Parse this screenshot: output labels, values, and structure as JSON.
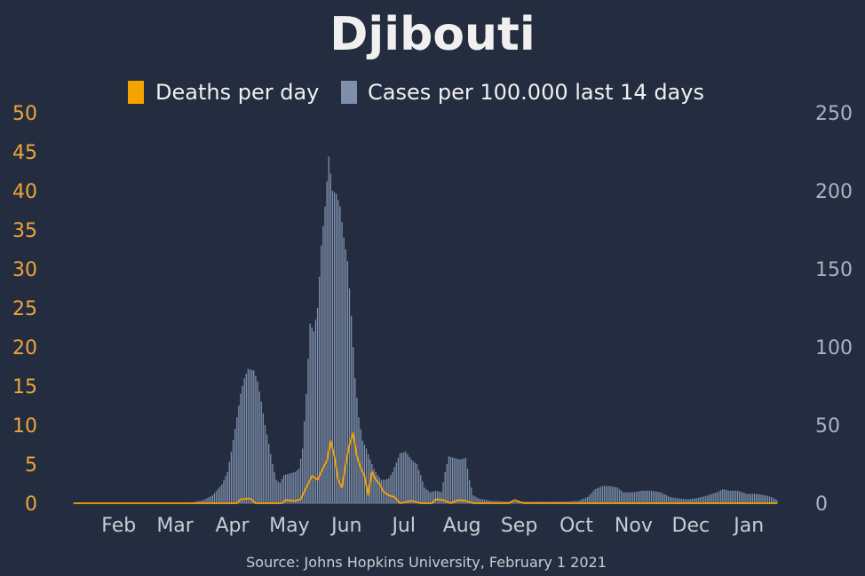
{
  "chart_data": {
    "type": "bar",
    "title": "Djibouti",
    "source": "Source: Johns Hopkins University, February 1 2021",
    "legend": [
      {
        "name": "Deaths per day",
        "color": "#f5a300",
        "marker": "orange-square"
      },
      {
        "name": "Cases per 100.000 last 14 days",
        "color": "#7f8fab",
        "marker": "slate-square"
      }
    ],
    "x_ticks": [
      "Feb",
      "Mar",
      "Apr",
      "May",
      "Jun",
      "Jul",
      "Aug",
      "Sep",
      "Oct",
      "Nov",
      "Dec",
      "Jan"
    ],
    "y_left": {
      "ticks": [
        "0",
        "5",
        "10",
        "15",
        "20",
        "25",
        "30",
        "35",
        "40",
        "45",
        "50"
      ],
      "lim": [
        0,
        50
      ],
      "color": "#f0a43a"
    },
    "y_right": {
      "ticks": [
        "0",
        "50",
        "100",
        "150",
        "200",
        "250"
      ],
      "lim": [
        0,
        250
      ],
      "color": "#a8b4c6"
    },
    "x_range": [
      "2020-01-22",
      "2021-01-31"
    ],
    "cases_series": {
      "name": "Cases per 100.000 last 14 days",
      "color": "#7f8fab",
      "points": [
        [
          "2020-01-22",
          0
        ],
        [
          "2020-03-18",
          0
        ],
        [
          "2020-03-25",
          0.5
        ],
        [
          "2020-03-31",
          2
        ],
        [
          "2020-04-05",
          5
        ],
        [
          "2020-04-10",
          12
        ],
        [
          "2020-04-13",
          20
        ],
        [
          "2020-04-15",
          33
        ],
        [
          "2020-04-18",
          55
        ],
        [
          "2020-04-20",
          70
        ],
        [
          "2020-04-22",
          80
        ],
        [
          "2020-04-24",
          86
        ],
        [
          "2020-04-27",
          85
        ],
        [
          "2020-04-29",
          78
        ],
        [
          "2020-05-01",
          65
        ],
        [
          "2020-05-03",
          50
        ],
        [
          "2020-05-05",
          38
        ],
        [
          "2020-05-07",
          25
        ],
        [
          "2020-05-09",
          15
        ],
        [
          "2020-05-11",
          13
        ],
        [
          "2020-05-13",
          18
        ],
        [
          "2020-05-16",
          19
        ],
        [
          "2020-05-19",
          20
        ],
        [
          "2020-05-21",
          22
        ],
        [
          "2020-05-23",
          35
        ],
        [
          "2020-05-25",
          70
        ],
        [
          "2020-05-27",
          115
        ],
        [
          "2020-05-29",
          110
        ],
        [
          "2020-05-31",
          125
        ],
        [
          "2020-06-02",
          165
        ],
        [
          "2020-06-04",
          190
        ],
        [
          "2020-06-06",
          222
        ],
        [
          "2020-06-08",
          200
        ],
        [
          "2020-06-10",
          198
        ],
        [
          "2020-06-12",
          190
        ],
        [
          "2020-06-14",
          170
        ],
        [
          "2020-06-16",
          155
        ],
        [
          "2020-06-18",
          120
        ],
        [
          "2020-06-20",
          80
        ],
        [
          "2020-06-22",
          55
        ],
        [
          "2020-06-24",
          40
        ],
        [
          "2020-06-26",
          35
        ],
        [
          "2020-06-28",
          28
        ],
        [
          "2020-06-30",
          22
        ],
        [
          "2020-07-02",
          18
        ],
        [
          "2020-07-04",
          15
        ],
        [
          "2020-07-06",
          15
        ],
        [
          "2020-07-08",
          16
        ],
        [
          "2020-07-10",
          20
        ],
        [
          "2020-07-12",
          26
        ],
        [
          "2020-07-14",
          32
        ],
        [
          "2020-07-17",
          33
        ],
        [
          "2020-07-20",
          28
        ],
        [
          "2020-07-23",
          25
        ],
        [
          "2020-07-25",
          18
        ],
        [
          "2020-07-27",
          10
        ],
        [
          "2020-07-30",
          7
        ],
        [
          "2020-08-02",
          8
        ],
        [
          "2020-08-05",
          7
        ],
        [
          "2020-08-07",
          20
        ],
        [
          "2020-08-09",
          30
        ],
        [
          "2020-08-12",
          29
        ],
        [
          "2020-08-15",
          28
        ],
        [
          "2020-08-18",
          29
        ],
        [
          "2020-08-20",
          15
        ],
        [
          "2020-08-22",
          5
        ],
        [
          "2020-08-25",
          3
        ],
        [
          "2020-09-01",
          1.5
        ],
        [
          "2020-09-10",
          1
        ],
        [
          "2020-09-20",
          1
        ],
        [
          "2020-10-01",
          1
        ],
        [
          "2020-10-10",
          1
        ],
        [
          "2020-10-17",
          1.5
        ],
        [
          "2020-10-22",
          4
        ],
        [
          "2020-10-26",
          9
        ],
        [
          "2020-10-30",
          11
        ],
        [
          "2020-11-03",
          11
        ],
        [
          "2020-11-07",
          10
        ],
        [
          "2020-11-10",
          7
        ],
        [
          "2020-11-15",
          7
        ],
        [
          "2020-11-20",
          8
        ],
        [
          "2020-11-25",
          8
        ],
        [
          "2020-11-30",
          7
        ],
        [
          "2020-12-05",
          4
        ],
        [
          "2020-12-10",
          3
        ],
        [
          "2020-12-15",
          2.5
        ],
        [
          "2020-12-20",
          3.5
        ],
        [
          "2020-12-25",
          5
        ],
        [
          "2020-12-30",
          7
        ],
        [
          "2021-01-02",
          9
        ],
        [
          "2021-01-06",
          8
        ],
        [
          "2021-01-10",
          8
        ],
        [
          "2021-01-15",
          6
        ],
        [
          "2021-01-20",
          6
        ],
        [
          "2021-01-25",
          5
        ],
        [
          "2021-01-28",
          4
        ],
        [
          "2021-01-31",
          2
        ]
      ]
    },
    "deaths_series": {
      "name": "Deaths per day",
      "color": "#f5a300",
      "points": [
        [
          "2020-01-22",
          0
        ],
        [
          "2020-04-18",
          0
        ],
        [
          "2020-04-20",
          0.5
        ],
        [
          "2020-04-25",
          0.6
        ],
        [
          "2020-04-28",
          0
        ],
        [
          "2020-05-12",
          0
        ],
        [
          "2020-05-14",
          0.4
        ],
        [
          "2020-05-19",
          0.3
        ],
        [
          "2020-05-22",
          0.5
        ],
        [
          "2020-05-25",
          2
        ],
        [
          "2020-05-28",
          3.5
        ],
        [
          "2020-05-31",
          3
        ],
        [
          "2020-06-03",
          4.5
        ],
        [
          "2020-06-05",
          5.5
        ],
        [
          "2020-06-07",
          8
        ],
        [
          "2020-06-09",
          6
        ],
        [
          "2020-06-11",
          3
        ],
        [
          "2020-06-13",
          2
        ],
        [
          "2020-06-15",
          5
        ],
        [
          "2020-06-17",
          7.5
        ],
        [
          "2020-06-19",
          9
        ],
        [
          "2020-06-21",
          6
        ],
        [
          "2020-06-23",
          4.5
        ],
        [
          "2020-06-25",
          3.5
        ],
        [
          "2020-06-27",
          1
        ],
        [
          "2020-06-29",
          4
        ],
        [
          "2020-07-01",
          3
        ],
        [
          "2020-07-03",
          2.5
        ],
        [
          "2020-07-05",
          1.5
        ],
        [
          "2020-07-08",
          1
        ],
        [
          "2020-07-11",
          0.8
        ],
        [
          "2020-07-14",
          0
        ],
        [
          "2020-07-20",
          0.3
        ],
        [
          "2020-07-25",
          0
        ],
        [
          "2020-07-31",
          0
        ],
        [
          "2020-08-02",
          0.5
        ],
        [
          "2020-08-06",
          0.4
        ],
        [
          "2020-08-10",
          0
        ],
        [
          "2020-08-14",
          0.4
        ],
        [
          "2020-08-18",
          0.3
        ],
        [
          "2020-08-22",
          0
        ],
        [
          "2020-09-10",
          0
        ],
        [
          "2020-09-13",
          0.4
        ],
        [
          "2020-09-18",
          0
        ],
        [
          "2021-01-31",
          0
        ]
      ]
    }
  }
}
